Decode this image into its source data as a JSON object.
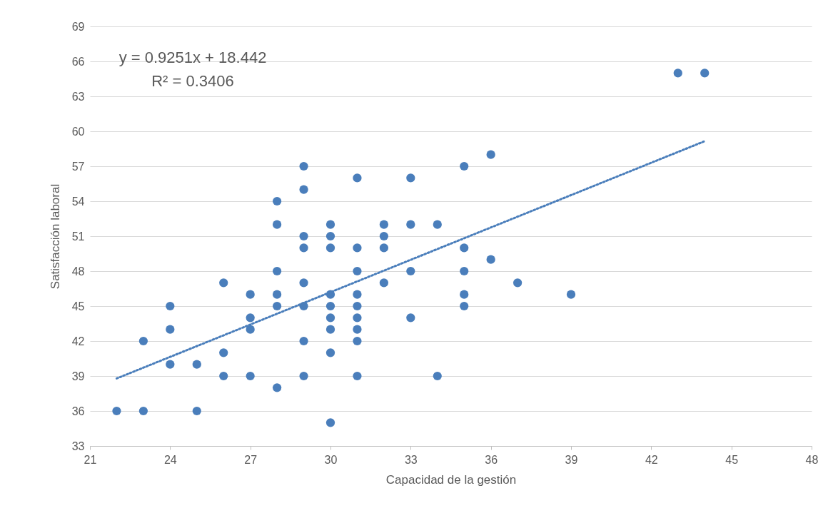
{
  "chart_data": {
    "type": "scatter",
    "xlabel": "Capacidad de la gestión",
    "ylabel": "Satisfacción laboral",
    "annotations": [
      "y = 0.9251x + 18.442",
      "R² = 0.3406"
    ],
    "xlim": [
      21,
      48
    ],
    "xticks": [
      21,
      24,
      27,
      30,
      33,
      36,
      39,
      42,
      45,
      48
    ],
    "ylim": [
      33,
      69
    ],
    "yticks": [
      33,
      36,
      39,
      42,
      45,
      48,
      51,
      54,
      57,
      60,
      63,
      66,
      69
    ],
    "grid": "y",
    "series": [
      {
        "color": "#4a7ebb",
        "marker": "circle",
        "x": [
          22,
          23,
          23,
          24,
          24,
          24,
          25,
          25,
          26,
          26,
          26,
          27,
          27,
          27,
          27,
          28,
          28,
          28,
          28,
          28,
          28,
          29,
          29,
          29,
          29,
          29,
          29,
          29,
          29,
          30,
          30,
          30,
          30,
          30,
          30,
          30,
          30,
          30,
          31,
          31,
          31,
          31,
          31,
          31,
          31,
          31,
          31,
          32,
          32,
          32,
          32,
          33,
          33,
          33,
          33,
          34,
          34,
          35,
          35,
          35,
          35,
          35,
          36,
          36,
          37,
          39,
          43,
          44
        ],
        "values": [
          36,
          42,
          36,
          45,
          43,
          40,
          40,
          36,
          47,
          41,
          39,
          46,
          44,
          43,
          39,
          54,
          52,
          48,
          46,
          45,
          38,
          57,
          55,
          51,
          50,
          47,
          45,
          42,
          39,
          52,
          51,
          50,
          46,
          45,
          44,
          43,
          41,
          35,
          56,
          50,
          48,
          46,
          45,
          44,
          43,
          42,
          39,
          52,
          51,
          50,
          47,
          56,
          52,
          48,
          44,
          52,
          39,
          57,
          50,
          48,
          46,
          45,
          58,
          49,
          47,
          46,
          65,
          65
        ]
      },
      {
        "type": "line",
        "color": "#4a7ebb",
        "line_style": "dotted",
        "x": [
          22,
          44
        ],
        "values": [
          38.79,
          59.15
        ]
      }
    ]
  }
}
